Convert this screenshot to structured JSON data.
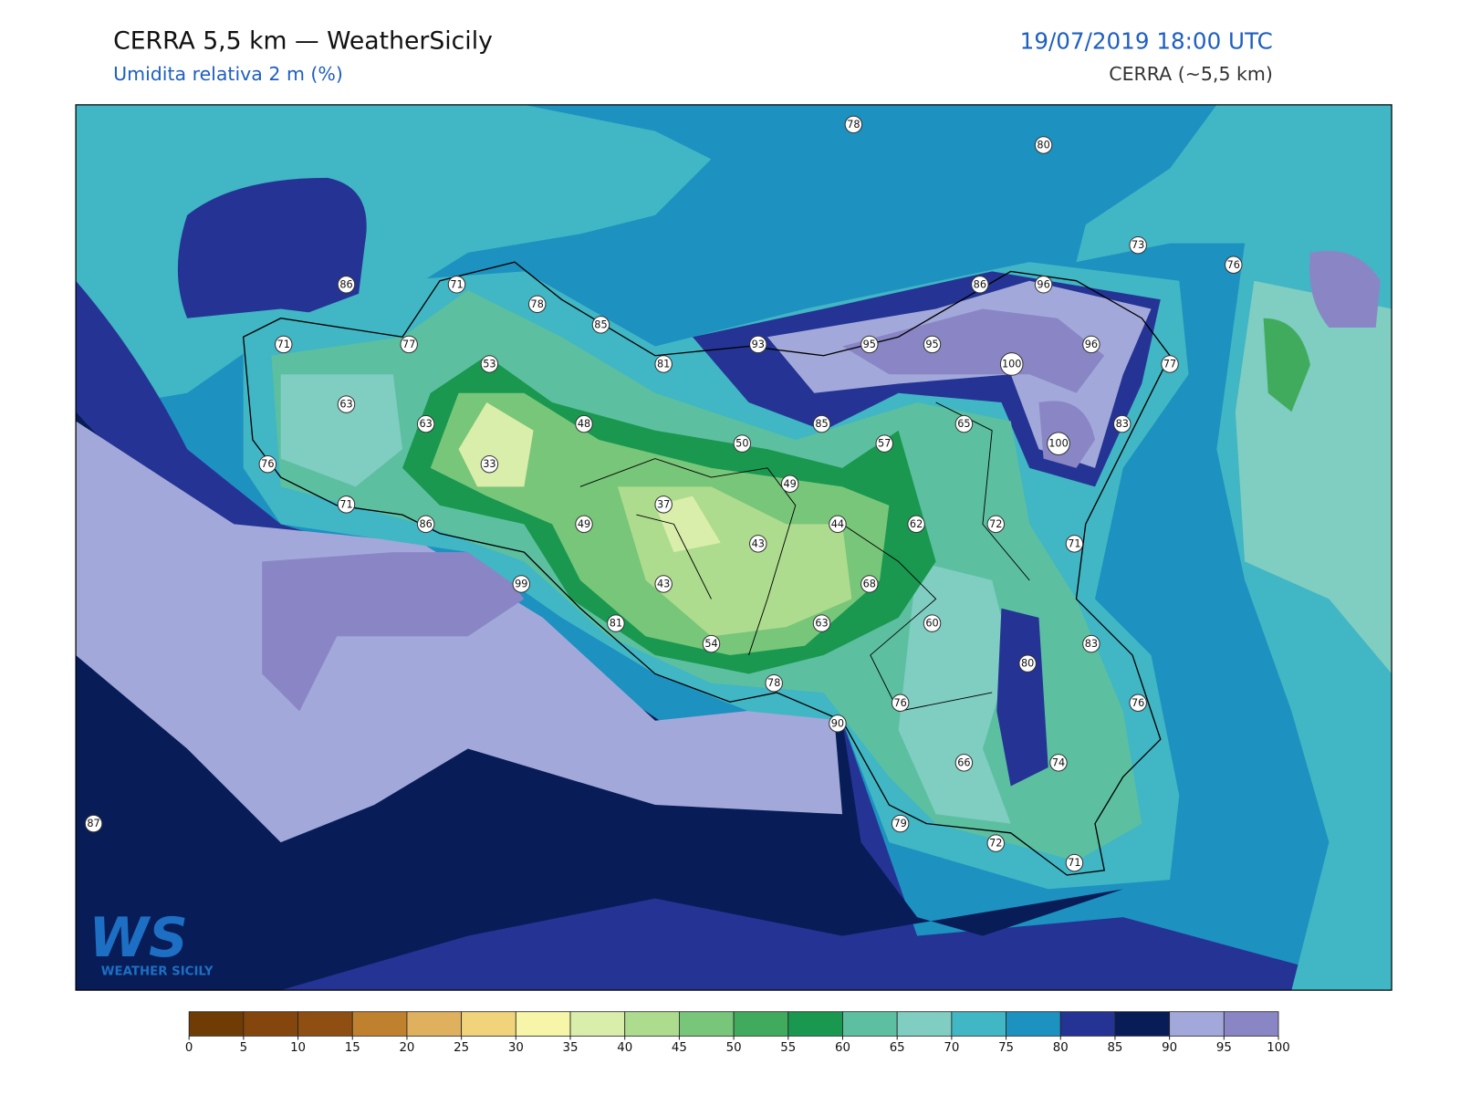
{
  "header": {
    "title": "CERRA 5,5 km — WeatherSicily",
    "subtitle": "Umidita relativa 2 m (%)",
    "datetime": "19/07/2019 18:00 UTC",
    "model": "CERRA (~5,5 km)"
  },
  "stations": [
    78,
    80,
    73,
    76,
    86,
    71,
    78,
    85,
    86,
    96,
    71,
    77,
    81,
    93,
    95,
    95,
    100,
    96,
    77,
    53,
    63,
    63,
    48,
    85,
    65,
    100,
    83,
    76,
    33,
    50,
    57,
    49,
    71,
    37,
    86,
    49,
    43,
    44,
    62,
    72,
    71,
    99,
    43,
    68,
    81,
    63,
    60,
    83,
    54,
    80,
    78,
    76,
    76,
    90,
    66,
    74,
    87,
    79,
    72,
    71
  ],
  "colorbar": {
    "ticks": [
      0,
      5,
      10,
      15,
      20,
      25,
      30,
      35,
      40,
      45,
      50,
      55,
      60,
      65,
      70,
      75,
      80,
      85,
      90,
      95,
      100
    ],
    "colors": [
      "#6f3c06",
      "#84460c",
      "#8f4f12",
      "#bf812d",
      "#dfb05e",
      "#f0d37a",
      "#f6f5a8",
      "#d9eeaa",
      "#aedc8e",
      "#78c679",
      "#41ab5d",
      "#1a9850",
      "#5cc0a0",
      "#80cdc1",
      "#41b6c4",
      "#1d91c0",
      "#253494",
      "#081d58",
      "#a2a9da",
      "#8a86c6"
    ]
  },
  "logo": {
    "mark": "WS",
    "text": "WEATHER SICILY"
  }
}
